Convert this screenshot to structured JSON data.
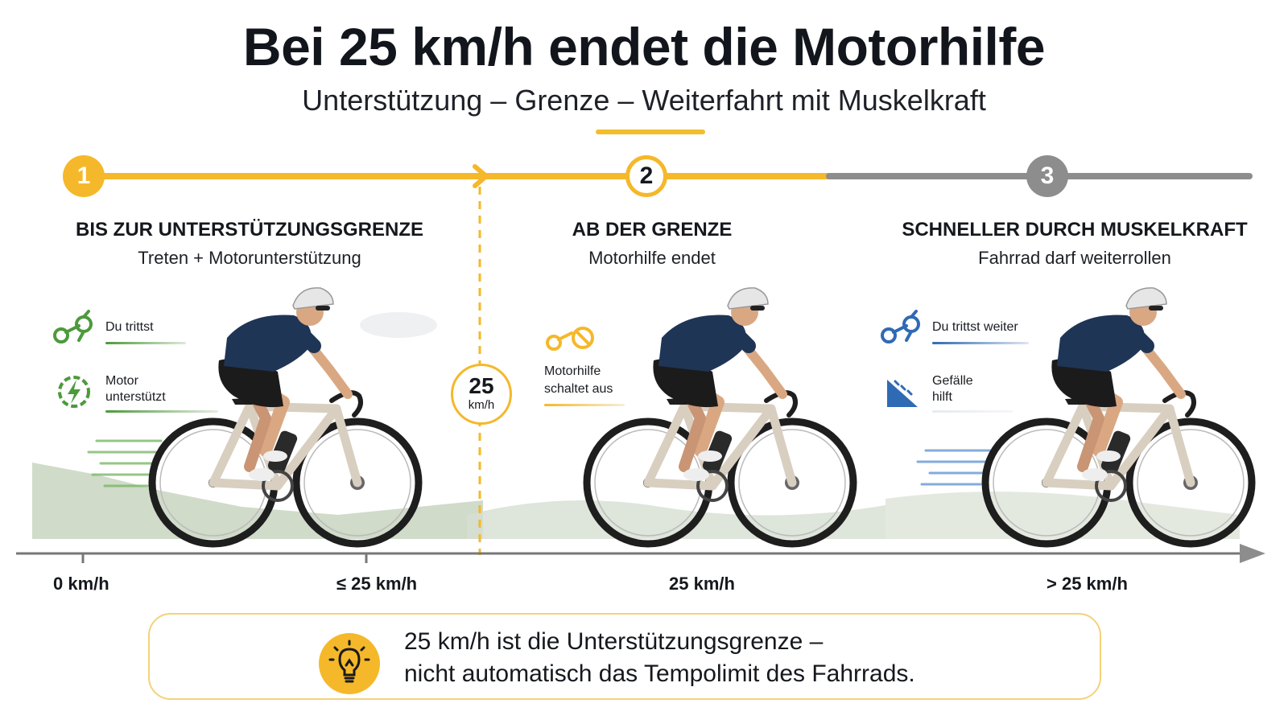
{
  "header": {
    "title": "Bei 25 km/h endet die Motorhilfe",
    "subtitle": "Unterstützung – Grenze – Weiterfahrt mit Muskelkraft"
  },
  "steps": [
    {
      "number": "1",
      "title": "BIS ZUR UNTERSTÜTZUNGSGRENZE",
      "subtitle": "Treten + Motorunterstützung"
    },
    {
      "number": "2",
      "title": "AB DER GRENZE",
      "subtitle": "Motorhilfe endet"
    },
    {
      "number": "3",
      "title": "SCHNELLER DURCH MUSKELKRAFT",
      "subtitle": "Fahrrad darf weiterrollen"
    }
  ],
  "features": {
    "phase1": [
      {
        "label_line1": "Du trittst",
        "label_line2": "",
        "icon": "pedal-crank-icon"
      },
      {
        "label_line1": "Motor",
        "label_line2": "unterstützt",
        "icon": "motor-lightning-icon"
      }
    ],
    "phase2": [
      {
        "label_line1": "Motorhilfe",
        "label_line2": "schaltet aus",
        "icon": "motor-off-icon"
      }
    ],
    "phase3": [
      {
        "label_line1": "Du trittst weiter",
        "label_line2": "",
        "icon": "pedal-crank-icon"
      },
      {
        "label_line1": "Gefälle",
        "label_line2": "hilft",
        "icon": "downhill-slope-icon"
      }
    ]
  },
  "limit_badge": {
    "value": "25",
    "unit": "km/h"
  },
  "speed_axis": [
    "0 km/h",
    "≤ 25 km/h",
    "25 km/h",
    "> 25 km/h"
  ],
  "info": {
    "line1": "25 km/h ist die Unterstützungsgrenze –",
    "line2": "nicht automatisch das Tempolimit des Fahrrads.",
    "icon": "lightbulb-icon"
  },
  "colors": {
    "accent_yellow": "#f5b82a",
    "assist_green": "#4c9a3c",
    "muscle_blue": "#2f6bb5",
    "inactive_gray": "#8d8d8d",
    "jersey_navy": "#1f3556",
    "frame_beige": "#d8cfc0"
  }
}
